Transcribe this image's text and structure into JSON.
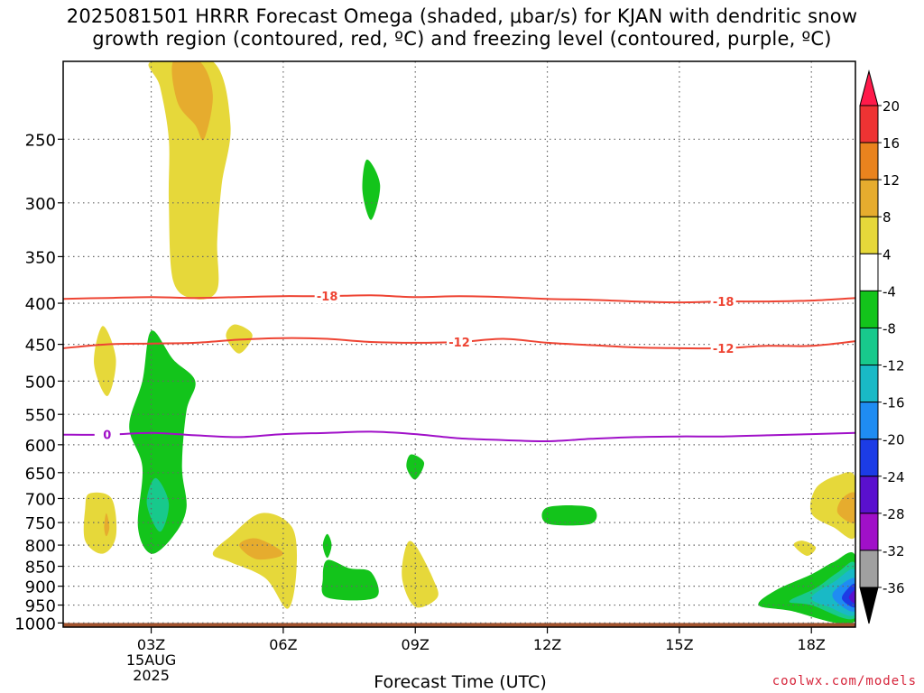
{
  "title_lines": [
    "2025081501 HRRR Forecast Omega (shaded, μbar/s) for KJAN with dendritic snow",
    "growth region (contoured, red, ºC) and freezing level (contoured, purple, ºC)"
  ],
  "credit": "coolwx.com/models",
  "chart_data": {
    "type": "contour",
    "title": "2025081501 HRRR Forecast Omega (shaded, μbar/s) for KJAN with dendritic snow growth region (contoured, red, ºC) and freezing level (contoured, purple, ºC)",
    "xlabel": "Forecast Time (UTC)",
    "ylabel": "",
    "x_ticks": [
      {
        "hour": 3,
        "label": "03Z",
        "sub": [
          "15AUG",
          "2025"
        ]
      },
      {
        "hour": 6,
        "label": "06Z"
      },
      {
        "hour": 9,
        "label": "09Z"
      },
      {
        "hour": 12,
        "label": "12Z"
      },
      {
        "hour": 15,
        "label": "15Z"
      },
      {
        "hour": 18,
        "label": "18Z"
      }
    ],
    "x_range_hours": [
      1,
      19
    ],
    "y_scale": "log-pressure",
    "y_ticks": [
      250,
      300,
      350,
      400,
      450,
      500,
      550,
      600,
      650,
      700,
      750,
      800,
      850,
      900,
      950,
      1000
    ],
    "y_range_hPa": [
      200,
      1012
    ],
    "grid": true,
    "colorbar": {
      "labels": [
        "20",
        "16",
        "12",
        "8",
        "4",
        "-4",
        "-8",
        "-12",
        "-16",
        "-20",
        "-24",
        "-28",
        "-32",
        "-36"
      ],
      "colors": [
        "#ff1a4a",
        "#ee3333",
        "#e9831e",
        "#e6ac2e",
        "#e6d83a",
        "#ffffff",
        "#13c41b",
        "#18c98c",
        "#19b9c6",
        "#1f8cf2",
        "#1c3ce6",
        "#5a10ce",
        "#a010c8",
        "#a0a0a0",
        "#000000"
      ]
    },
    "contours": [
      {
        "name": "-18",
        "color": "#ee4433",
        "labels_at_hours": [
          7,
          16
        ],
        "points": [
          [
            1,
            395
          ],
          [
            2,
            394
          ],
          [
            3,
            393
          ],
          [
            4,
            394
          ],
          [
            5,
            393
          ],
          [
            6,
            392
          ],
          [
            7,
            392
          ],
          [
            8,
            391
          ],
          [
            9,
            393
          ],
          [
            10,
            392
          ],
          [
            11,
            393
          ],
          [
            12,
            395
          ],
          [
            13,
            396
          ],
          [
            14,
            398
          ],
          [
            15,
            399
          ],
          [
            16,
            398
          ],
          [
            17,
            398
          ],
          [
            18,
            397
          ],
          [
            19,
            394
          ]
        ]
      },
      {
        "name": "-12",
        "color": "#ee4433",
        "labels_at_hours": [
          10,
          16
        ],
        "points": [
          [
            1,
            455
          ],
          [
            2,
            450
          ],
          [
            3,
            449
          ],
          [
            4,
            448
          ],
          [
            5,
            444
          ],
          [
            6,
            442
          ],
          [
            7,
            443
          ],
          [
            8,
            447
          ],
          [
            9,
            448
          ],
          [
            10,
            447
          ],
          [
            11,
            443
          ],
          [
            12,
            448
          ],
          [
            13,
            451
          ],
          [
            14,
            454
          ],
          [
            15,
            455
          ],
          [
            16,
            455
          ],
          [
            17,
            452
          ],
          [
            18,
            452
          ],
          [
            19,
            446
          ]
        ]
      },
      {
        "name": "0",
        "color": "#a010c8",
        "labels_at_hours": [
          2
        ],
        "points": [
          [
            1,
            583
          ],
          [
            2,
            583
          ],
          [
            3,
            580
          ],
          [
            4,
            584
          ],
          [
            5,
            587
          ],
          [
            6,
            582
          ],
          [
            7,
            580
          ],
          [
            8,
            578
          ],
          [
            9,
            582
          ],
          [
            10,
            589
          ],
          [
            11,
            592
          ],
          [
            12,
            594
          ],
          [
            13,
            590
          ],
          [
            14,
            587
          ],
          [
            15,
            586
          ],
          [
            16,
            586
          ],
          [
            17,
            584
          ],
          [
            18,
            582
          ],
          [
            19,
            580
          ]
        ]
      }
    ],
    "surface_level_hPa": 1000,
    "omega_regions": [
      {
        "value": 4,
        "color": "#e6d83a",
        "points": [
          [
            3,
            200
          ],
          [
            4.4,
            200
          ],
          [
            4.8,
            240
          ],
          [
            4.6,
            285
          ],
          [
            4.5,
            335
          ],
          [
            4.5,
            385
          ],
          [
            4,
            395
          ],
          [
            3.5,
            375
          ],
          [
            3.4,
            300
          ],
          [
            3.4,
            250
          ],
          [
            3.2,
            215
          ]
        ]
      },
      {
        "value": 8,
        "color": "#e6ac2e",
        "points": [
          [
            3.5,
            200
          ],
          [
            4.1,
            200
          ],
          [
            4.4,
            220
          ],
          [
            4.2,
            250
          ],
          [
            4,
            240
          ],
          [
            3.6,
            225
          ]
        ]
      },
      {
        "value": -4,
        "color": "#13c41b",
        "points": [
          [
            7.9,
            265
          ],
          [
            8.2,
            285
          ],
          [
            8,
            315
          ],
          [
            7.8,
            290
          ]
        ]
      },
      {
        "value": 4,
        "color": "#e6d83a",
        "points": [
          [
            4.9,
            425
          ],
          [
            5.3,
            438
          ],
          [
            5,
            462
          ],
          [
            4.7,
            440
          ]
        ]
      },
      {
        "value": 4,
        "color": "#e6d83a",
        "points": [
          [
            1.9,
            427
          ],
          [
            2.2,
            470
          ],
          [
            2,
            522
          ],
          [
            1.7,
            475
          ]
        ]
      },
      {
        "value": -4,
        "color": "#13c41b",
        "points": [
          [
            3,
            433
          ],
          [
            3.5,
            470
          ],
          [
            4,
            500
          ],
          [
            3.8,
            545
          ],
          [
            3.7,
            640
          ],
          [
            3.8,
            720
          ],
          [
            3.5,
            780
          ],
          [
            3,
            820
          ],
          [
            2.7,
            760
          ],
          [
            2.8,
            640
          ],
          [
            2.5,
            570
          ],
          [
            2.8,
            500
          ]
        ]
      },
      {
        "value": -8,
        "color": "#18c98c",
        "points": [
          [
            3.1,
            660
          ],
          [
            3.4,
            710
          ],
          [
            3.2,
            770
          ],
          [
            2.9,
            710
          ]
        ]
      },
      {
        "value": -4,
        "color": "#13c41b",
        "points": [
          [
            8.9,
            617
          ],
          [
            9.2,
            632
          ],
          [
            9,
            663
          ],
          [
            8.8,
            640
          ]
        ]
      },
      {
        "value": 4,
        "color": "#e6d83a",
        "points": [
          [
            1.6,
            690
          ],
          [
            2.1,
            700
          ],
          [
            2.2,
            780
          ],
          [
            1.9,
            820
          ],
          [
            1.5,
            790
          ],
          [
            1.5,
            720
          ]
        ]
      },
      {
        "value": 8,
        "color": "#e6ac2e",
        "points": [
          [
            1.98,
            730
          ],
          [
            2.05,
            760
          ],
          [
            1.98,
            780
          ],
          [
            1.93,
            760
          ]
        ]
      },
      {
        "value": 4,
        "color": "#e6d83a",
        "points": [
          [
            4.8,
            780
          ],
          [
            5.5,
            730
          ],
          [
            6.2,
            760
          ],
          [
            6.3,
            860
          ],
          [
            6.1,
            960
          ],
          [
            5.6,
            880
          ],
          [
            4.8,
            840
          ],
          [
            4.4,
            820
          ]
        ]
      },
      {
        "value": 8,
        "color": "#e6ac2e",
        "points": [
          [
            5,
            800
          ],
          [
            5.4,
            785
          ],
          [
            6,
            820
          ],
          [
            5.4,
            833
          ]
        ]
      },
      {
        "value": -4,
        "color": "#13c41b",
        "points": [
          [
            7,
            775
          ],
          [
            7.1,
            800
          ],
          [
            7,
            830
          ],
          [
            6.9,
            800
          ]
        ]
      },
      {
        "value": -4,
        "color": "#13c41b",
        "points": [
          [
            7,
            835
          ],
          [
            7.5,
            855
          ],
          [
            8,
            865
          ],
          [
            8.1,
            930
          ],
          [
            7,
            930
          ],
          [
            6.9,
            880
          ]
        ]
      },
      {
        "value": 4,
        "color": "#e6d83a",
        "points": [
          [
            9,
            800
          ],
          [
            9.4,
            880
          ],
          [
            9.5,
            930
          ],
          [
            9,
            955
          ],
          [
            8.7,
            880
          ],
          [
            8.8,
            800
          ]
        ]
      },
      {
        "value": -4,
        "color": "#13c41b",
        "points": [
          [
            12,
            718
          ],
          [
            13,
            718
          ],
          [
            13,
            752
          ],
          [
            12,
            752
          ]
        ]
      },
      {
        "value": 4,
        "color": "#e6d83a",
        "points": [
          [
            17.8,
            790
          ],
          [
            18.1,
            805
          ],
          [
            17.9,
            825
          ],
          [
            17.6,
            800
          ]
        ]
      },
      {
        "value": 4,
        "color": "#e6d83a",
        "points": [
          [
            19,
            660
          ],
          [
            19,
            780
          ],
          [
            18.5,
            760
          ],
          [
            18,
            730
          ],
          [
            18.1,
            680
          ],
          [
            18.6,
            655
          ]
        ]
      },
      {
        "value": 8,
        "color": "#e6ac2e",
        "points": [
          [
            19,
            690
          ],
          [
            19,
            750
          ],
          [
            18.6,
            730
          ],
          [
            18.7,
            700
          ]
        ]
      },
      {
        "value": -4,
        "color": "#13c41b",
        "points": [
          [
            19,
            825
          ],
          [
            19,
            995
          ],
          [
            17.5,
            965
          ],
          [
            16.8,
            950
          ],
          [
            17.2,
            910
          ],
          [
            18,
            870
          ],
          [
            18.5,
            840
          ]
        ]
      },
      {
        "value": -8,
        "color": "#18c98c",
        "points": [
          [
            19,
            845
          ],
          [
            19,
            985
          ],
          [
            18,
            950
          ],
          [
            17.5,
            940
          ],
          [
            18.1,
            905
          ],
          [
            18.6,
            865
          ]
        ]
      },
      {
        "value": -12,
        "color": "#19b9c6",
        "points": [
          [
            19,
            860
          ],
          [
            19,
            975
          ],
          [
            18.4,
            955
          ],
          [
            18,
            930
          ],
          [
            18.5,
            890
          ]
        ]
      },
      {
        "value": -16,
        "color": "#1f8cf2",
        "points": [
          [
            19,
            880
          ],
          [
            19,
            965
          ],
          [
            18.6,
            945
          ],
          [
            18.5,
            915
          ]
        ]
      },
      {
        "value": -20,
        "color": "#1c3ce6",
        "points": [
          [
            19,
            895
          ],
          [
            19,
            955
          ],
          [
            18.7,
            935
          ],
          [
            18.8,
            910
          ]
        ]
      },
      {
        "value": -24,
        "color": "#5a10ce",
        "points": [
          [
            19,
            910
          ],
          [
            19,
            945
          ],
          [
            18.85,
            930
          ]
        ]
      }
    ]
  }
}
